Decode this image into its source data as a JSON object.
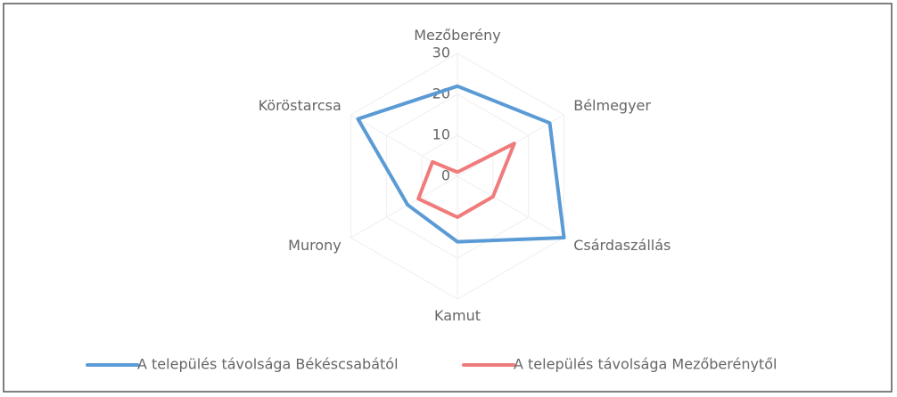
{
  "chart_data": {
    "type": "radar",
    "categories": [
      "Mezőberény",
      "Bélmegyer",
      "Csárdaszállás",
      "Kamut",
      "Murony",
      "Köröstarcsa"
    ],
    "series": [
      {
        "name": "A település távolsága Békéscsabától",
        "color": "#5b9bd5",
        "values": [
          22,
          26,
          30,
          16,
          14,
          28
        ]
      },
      {
        "name": "A település távolsága Mezőberénytől",
        "color": "#f07b7b",
        "values": [
          1,
          16,
          10,
          10,
          11,
          7
        ]
      }
    ],
    "ylim": [
      0,
      30
    ],
    "yticks": [
      0,
      10,
      20,
      30
    ],
    "grid": true,
    "legend": "bottom"
  }
}
